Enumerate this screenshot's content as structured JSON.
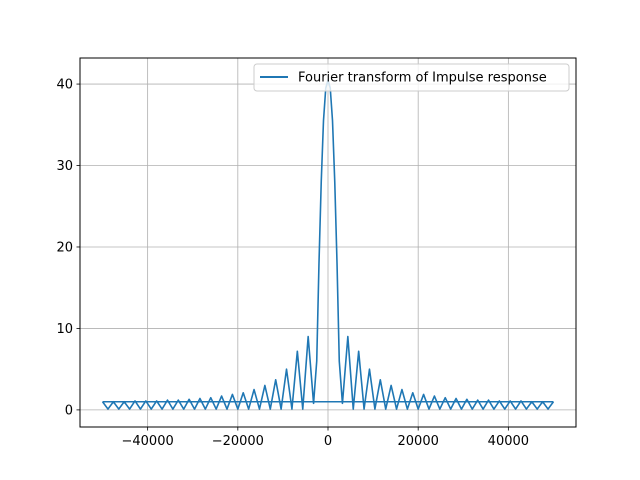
{
  "chart_data": {
    "type": "line",
    "title": "",
    "xlabel": "",
    "ylabel": "",
    "xlim": [
      -55000,
      55000
    ],
    "ylim": [
      -2.1,
      43.2
    ],
    "x_ticks": [
      -40000,
      -20000,
      0,
      20000,
      40000
    ],
    "x_tick_labels": [
      "−40000",
      "−20000",
      "0",
      "20000",
      "40000"
    ],
    "y_ticks": [
      0,
      10,
      20,
      30,
      40
    ],
    "y_tick_labels": [
      "0",
      "10",
      "20",
      "30",
      "40"
    ],
    "grid": true,
    "legend_position": "top-right",
    "series": [
      {
        "name": "Fourier transform of Impulse response",
        "color": "#1f77b4",
        "x": [
          -50000,
          -48800,
          -47600,
          -46400,
          -45200,
          -44000,
          -42800,
          -41600,
          -40400,
          -39200,
          -38000,
          -36800,
          -35600,
          -34400,
          -33200,
          -32000,
          -30800,
          -29600,
          -28400,
          -27200,
          -26000,
          -24800,
          -23600,
          -22400,
          -21200,
          -20000,
          -18800,
          -17600,
          -16400,
          -15200,
          -14000,
          -12800,
          -11600,
          -10400,
          -9200,
          -8000,
          -6800,
          -5600,
          -4400,
          -3200,
          -2500,
          -2000,
          -1500,
          -1000,
          -500,
          0,
          500,
          1000,
          1500,
          2000,
          2500,
          3200,
          4400,
          5600,
          6800,
          8000,
          9200,
          10400,
          11600,
          12800,
          14000,
          15200,
          16400,
          17600,
          18800,
          20000,
          21200,
          22400,
          23600,
          24800,
          26000,
          27200,
          28400,
          29600,
          30800,
          32000,
          33200,
          34400,
          35600,
          36800,
          38000,
          39200,
          40400,
          41600,
          42800,
          44000,
          45200,
          46400,
          47600,
          48800,
          50000
        ],
        "y": [
          1.0,
          0.1,
          1.0,
          0.1,
          1.0,
          0.1,
          1.1,
          0.1,
          1.1,
          0.1,
          1.1,
          0.1,
          1.2,
          0.1,
          1.2,
          0.1,
          1.3,
          0.1,
          1.4,
          0.1,
          1.5,
          0.1,
          1.7,
          0.1,
          1.9,
          0.1,
          2.1,
          0.1,
          2.5,
          0.1,
          3.0,
          0.1,
          3.7,
          0.1,
          5.0,
          0.1,
          7.2,
          0.1,
          9.0,
          0.8,
          6.0,
          18.0,
          28.0,
          35.5,
          39.5,
          40.5,
          39.5,
          35.5,
          28.0,
          18.0,
          6.0,
          0.8,
          9.0,
          0.1,
          7.2,
          0.1,
          5.0,
          0.1,
          3.7,
          0.1,
          3.0,
          0.1,
          2.5,
          0.1,
          2.1,
          0.1,
          1.9,
          0.1,
          1.7,
          0.1,
          1.5,
          0.1,
          1.4,
          0.1,
          1.3,
          0.1,
          1.2,
          0.1,
          1.2,
          0.1,
          1.1,
          0.1,
          1.1,
          0.1,
          1.1,
          0.1,
          1.0,
          0.1,
          1.0,
          0.1,
          1.0
        ]
      }
    ]
  }
}
